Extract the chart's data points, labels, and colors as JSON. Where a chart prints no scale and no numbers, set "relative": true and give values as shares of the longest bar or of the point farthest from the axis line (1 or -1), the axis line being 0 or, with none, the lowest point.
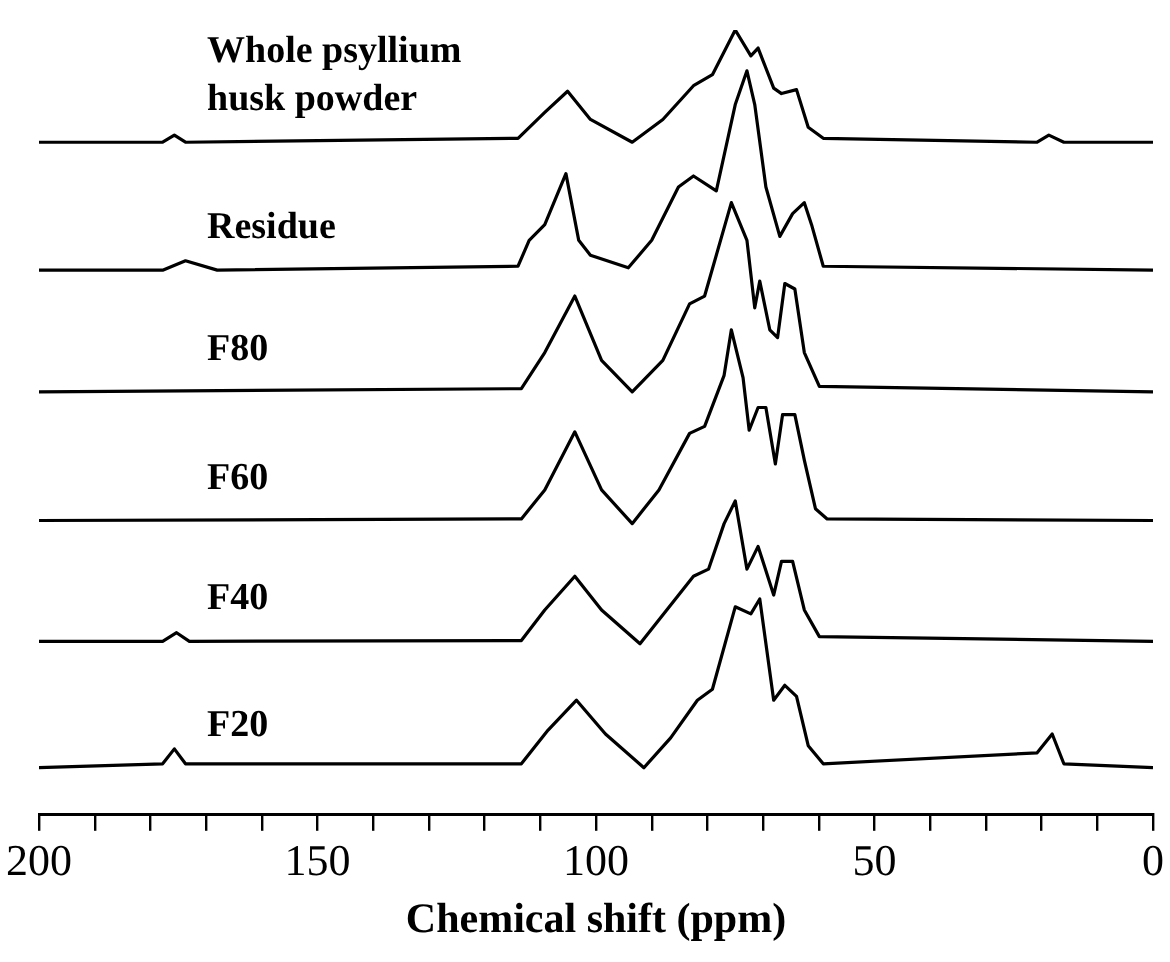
{
  "chart_data": {
    "type": "line",
    "relative": true,
    "xlabel": "Chemical shift (ppm)",
    "xlim": [
      200,
      0
    ],
    "xticks": [
      200,
      {
        "value": 190,
        "label": null
      },
      {
        "value": 180,
        "label": null
      },
      {
        "value": 170,
        "label": null
      },
      {
        "value": 160,
        "label": null
      },
      150,
      {
        "value": 140,
        "label": null
      },
      {
        "value": 130,
        "label": null
      },
      {
        "value": 120,
        "label": null
      },
      {
        "value": 110,
        "label": null
      },
      100,
      {
        "value": 90,
        "label": null
      },
      {
        "value": 80,
        "label": null
      },
      {
        "value": 70,
        "label": null
      },
      {
        "value": 60,
        "label": null
      },
      50,
      {
        "value": 40,
        "label": null
      },
      {
        "value": 30,
        "label": null
      },
      {
        "value": 20,
        "label": null
      },
      {
        "value": 10,
        "label": null
      },
      0
    ],
    "grid": false,
    "legend": false,
    "marker": "none",
    "line_style": "solid",
    "series": [
      {
        "name": "Whole psyllium husk powder",
        "color": "#000000",
        "x": [
          200,
          177.8,
          175.7,
          173.7,
          114.0,
          109.2,
          105.1,
          101.0,
          93.5,
          88.0,
          82.5,
          79.1,
          75.0,
          72.2,
          70.9,
          68.1,
          66.7,
          64.0,
          61.9,
          59.2,
          20.8,
          18.7,
          16.0,
          0
        ],
        "values": [
          0.857,
          0.857,
          0.866,
          0.857,
          0.862,
          0.895,
          0.922,
          0.886,
          0.857,
          0.886,
          0.929,
          0.943,
          1.0,
          0.967,
          0.977,
          0.926,
          0.919,
          0.924,
          0.876,
          0.862,
          0.857,
          0.866,
          0.857,
          0.857
        ]
      },
      {
        "name": "Residue",
        "color": "#000000",
        "x": [
          200,
          177.8,
          173.7,
          168.0,
          114.0,
          112.0,
          109.2,
          105.4,
          103.1,
          101.0,
          94.2,
          90.0,
          85.2,
          82.5,
          78.4,
          75.0,
          72.9,
          71.5,
          69.5,
          67.0,
          64.7,
          62.6,
          61.3,
          59.2,
          0
        ],
        "values": [
          0.694,
          0.694,
          0.706,
          0.694,
          0.699,
          0.732,
          0.752,
          0.817,
          0.732,
          0.713,
          0.697,
          0.732,
          0.8,
          0.814,
          0.795,
          0.905,
          0.948,
          0.905,
          0.8,
          0.737,
          0.766,
          0.78,
          0.752,
          0.699,
          0.694
        ]
      },
      {
        "name": "F80",
        "color": "#000000",
        "x": [
          200,
          113.4,
          109.2,
          103.8,
          99.0,
          93.5,
          88.0,
          83.2,
          80.5,
          75.7,
          72.9,
          71.5,
          70.6,
          68.8,
          67.4,
          66.1,
          64.3,
          62.6,
          59.9,
          0
        ],
        "values": [
          0.539,
          0.543,
          0.589,
          0.661,
          0.579,
          0.539,
          0.579,
          0.651,
          0.661,
          0.78,
          0.732,
          0.646,
          0.68,
          0.618,
          0.608,
          0.677,
          0.67,
          0.589,
          0.546,
          0.539
        ]
      },
      {
        "name": "F60",
        "color": "#000000",
        "x": [
          200,
          113.4,
          109.2,
          103.8,
          99.0,
          93.5,
          88.7,
          83.2,
          80.5,
          77.0,
          75.7,
          73.6,
          72.5,
          70.9,
          69.5,
          67.8,
          66.5,
          64.3,
          62.6,
          60.6,
          58.5,
          0
        ],
        "values": [
          0.375,
          0.377,
          0.414,
          0.488,
          0.414,
          0.371,
          0.414,
          0.486,
          0.495,
          0.56,
          0.618,
          0.557,
          0.49,
          0.519,
          0.519,
          0.447,
          0.51,
          0.51,
          0.452,
          0.39,
          0.377,
          0.375
        ]
      },
      {
        "name": "F40",
        "color": "#000000",
        "x": [
          200,
          177.8,
          175.3,
          173.0,
          113.4,
          109.2,
          103.8,
          99.0,
          92.1,
          87.3,
          82.5,
          79.8,
          77.0,
          75.0,
          72.9,
          70.9,
          68.1,
          66.7,
          64.7,
          62.6,
          59.9,
          0
        ],
        "values": [
          0.221,
          0.221,
          0.232,
          0.221,
          0.222,
          0.261,
          0.304,
          0.261,
          0.218,
          0.261,
          0.304,
          0.313,
          0.371,
          0.4,
          0.313,
          0.342,
          0.28,
          0.323,
          0.323,
          0.261,
          0.227,
          0.221
        ]
      },
      {
        "name": "F20",
        "color": "#000000",
        "x": [
          200,
          177.8,
          175.7,
          173.7,
          113.4,
          108.6,
          103.5,
          98.3,
          91.4,
          86.6,
          81.8,
          79.1,
          75.0,
          72.2,
          70.6,
          68.1,
          66.1,
          64.0,
          61.9,
          59.2,
          20.8,
          18.1,
          16.0,
          0
        ],
        "values": [
          0.06,
          0.065,
          0.084,
          0.065,
          0.065,
          0.108,
          0.146,
          0.103,
          0.06,
          0.098,
          0.146,
          0.16,
          0.265,
          0.256,
          0.275,
          0.146,
          0.165,
          0.151,
          0.088,
          0.065,
          0.079,
          0.103,
          0.065,
          0.06
        ]
      }
    ]
  }
}
